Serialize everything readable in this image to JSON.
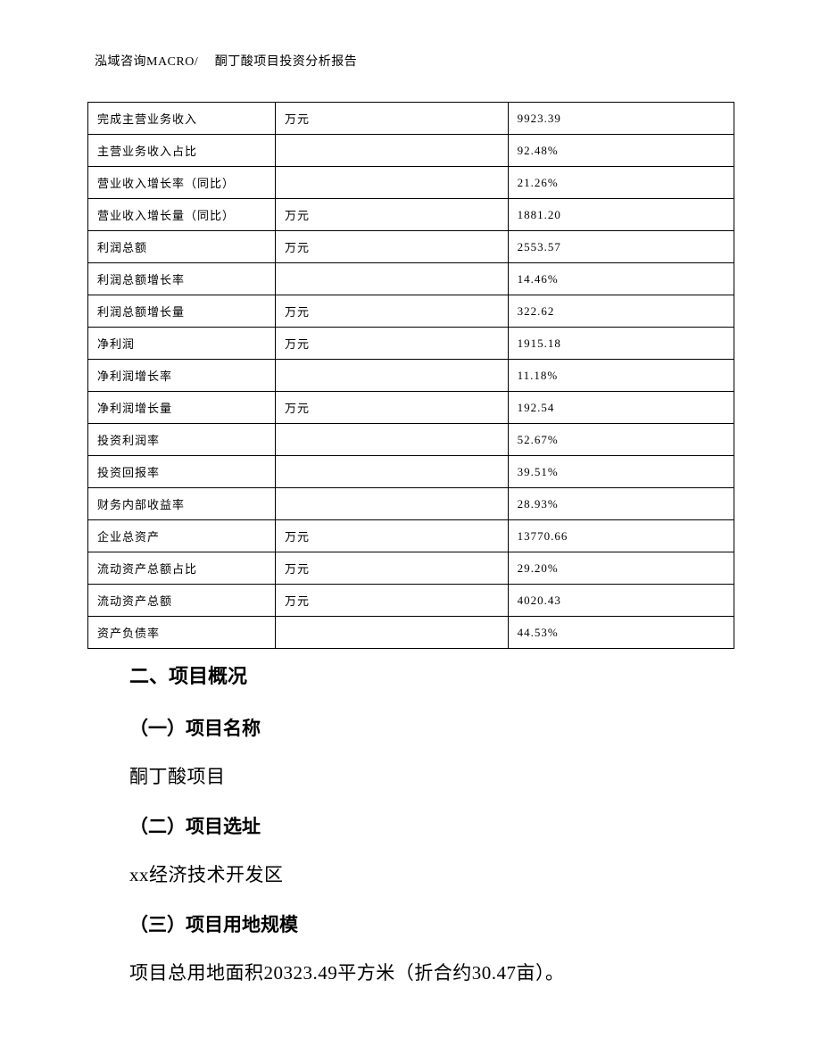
{
  "header": {
    "text": "泓域咨询MACRO/　 酮丁酸项目投资分析报告"
  },
  "table": {
    "rows": [
      {
        "label": "完成主营业务收入",
        "unit": "万元",
        "value": "9923.39"
      },
      {
        "label": "主营业务收入占比",
        "unit": "",
        "value": "92.48%"
      },
      {
        "label": "营业收入增长率（同比）",
        "unit": "",
        "value": "21.26%"
      },
      {
        "label": "营业收入增长量（同比）",
        "unit": "万元",
        "value": "1881.20"
      },
      {
        "label": "利润总额",
        "unit": "万元",
        "value": "2553.57"
      },
      {
        "label": "利润总额增长率",
        "unit": "",
        "value": "14.46%"
      },
      {
        "label": "利润总额增长量",
        "unit": "万元",
        "value": "322.62"
      },
      {
        "label": "净利润",
        "unit": "万元",
        "value": "1915.18"
      },
      {
        "label": "净利润增长率",
        "unit": "",
        "value": "11.18%"
      },
      {
        "label": "净利润增长量",
        "unit": "万元",
        "value": "192.54"
      },
      {
        "label": "投资利润率",
        "unit": "",
        "value": "52.67%"
      },
      {
        "label": "投资回报率",
        "unit": "",
        "value": "39.51%"
      },
      {
        "label": "财务内部收益率",
        "unit": "",
        "value": "28.93%"
      },
      {
        "label": "企业总资产",
        "unit": "万元",
        "value": "13770.66"
      },
      {
        "label": "流动资产总额占比",
        "unit": "万元",
        "value": "29.20%"
      },
      {
        "label": "流动资产总额",
        "unit": "万元",
        "value": "4020.43"
      },
      {
        "label": "资产负债率",
        "unit": "",
        "value": "44.53%"
      }
    ]
  },
  "content": {
    "section_title": "二、项目概况",
    "sub1_title": "（一）项目名称",
    "sub1_text": "酮丁酸项目",
    "sub2_title": "（二）项目选址",
    "sub2_text": "xx经济技术开发区",
    "sub3_title": "（三）项目用地规模",
    "sub3_text": "项目总用地面积20323.49平方米（折合约30.47亩）。"
  }
}
